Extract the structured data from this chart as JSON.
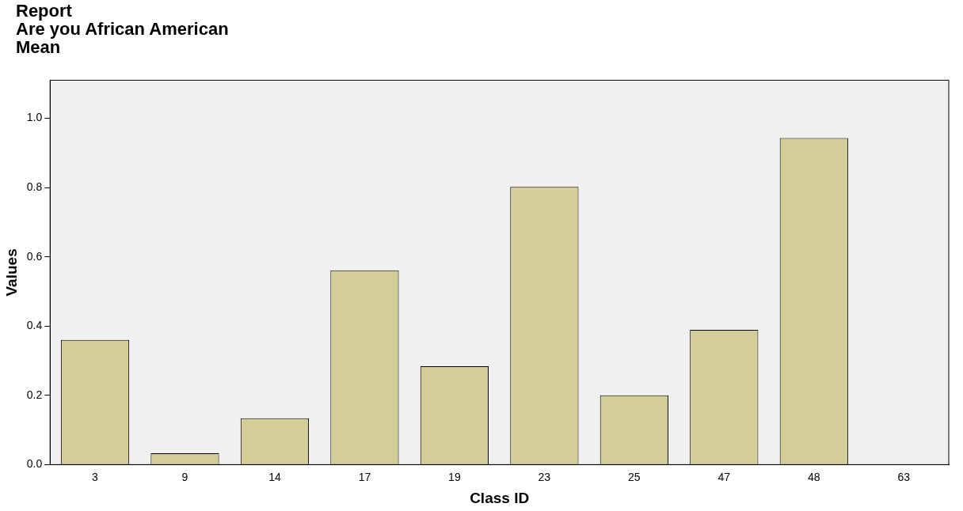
{
  "chart_data": {
    "type": "bar",
    "title": "Report\nAre you African American\nMean",
    "xlabel": "Class ID",
    "ylabel": "Values",
    "categories": [
      "3",
      "9",
      "14",
      "17",
      "19",
      "23",
      "25",
      "47",
      "48",
      "63"
    ],
    "values": [
      0.36,
      0.033,
      0.134,
      0.561,
      0.284,
      0.802,
      0.2,
      0.389,
      0.943,
      0
    ],
    "color": "#d3ce97",
    "ylim": [
      0,
      1.11
    ],
    "yticks": [
      {
        "value": 0,
        "label": "0.0"
      },
      {
        "value": 0.2,
        "label": "0.2"
      },
      {
        "value": 0.4,
        "label": "0.4"
      },
      {
        "value": 0.6,
        "label": "0.6"
      },
      {
        "value": 0.8,
        "label": "0.8"
      },
      {
        "value": 1,
        "label": "1.0"
      }
    ],
    "grid": false,
    "legend": false
  }
}
